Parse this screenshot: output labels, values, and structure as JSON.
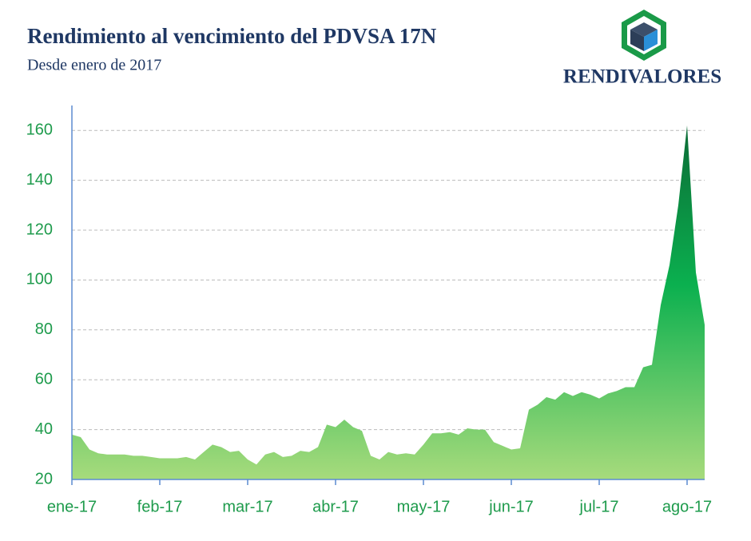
{
  "logo": {
    "text": "RENDIVALORES"
  },
  "chart_data": {
    "type": "area",
    "title": "Rendimiento al vencimiento del PDVSA 17N",
    "subtitle": "Desde enero de 2017",
    "categories": [
      "ene-17",
      null,
      null,
      null,
      null,
      null,
      null,
      null,
      null,
      null,
      "feb-17",
      null,
      null,
      null,
      null,
      null,
      null,
      null,
      null,
      null,
      "mar-17",
      null,
      null,
      null,
      null,
      null,
      null,
      null,
      null,
      null,
      "abr-17",
      null,
      null,
      null,
      null,
      null,
      null,
      null,
      null,
      null,
      "may-17",
      null,
      null,
      null,
      null,
      null,
      null,
      null,
      null,
      null,
      "jun-17",
      null,
      null,
      null,
      null,
      null,
      null,
      null,
      null,
      null,
      "jul-17",
      null,
      null,
      null,
      null,
      null,
      null,
      null,
      null,
      null,
      "ago-17",
      null,
      null
    ],
    "values": [
      38,
      37,
      32,
      30.5,
      30,
      30,
      30,
      29.5,
      29.5,
      29,
      28.5,
      28.5,
      28.5,
      29,
      28,
      31,
      34,
      33,
      31,
      31.5,
      28,
      26,
      30,
      31,
      29,
      29.5,
      31.5,
      31,
      33,
      42,
      41,
      44,
      41,
      39.5,
      29.5,
      28,
      31,
      30,
      30.5,
      30,
      34,
      38.5,
      38.5,
      39,
      38,
      40.5,
      40,
      40,
      35,
      33.5,
      32,
      32.5,
      48,
      50,
      53,
      52,
      55,
      53.5,
      55,
      54,
      52.5,
      54.5,
      55.5,
      57,
      57,
      65,
      66,
      90,
      106,
      130,
      162,
      103,
      82
    ],
    "ylim": [
      20,
      170
    ],
    "yticks": [
      20,
      40,
      60,
      80,
      100,
      120,
      140,
      160
    ],
    "grid": true
  }
}
